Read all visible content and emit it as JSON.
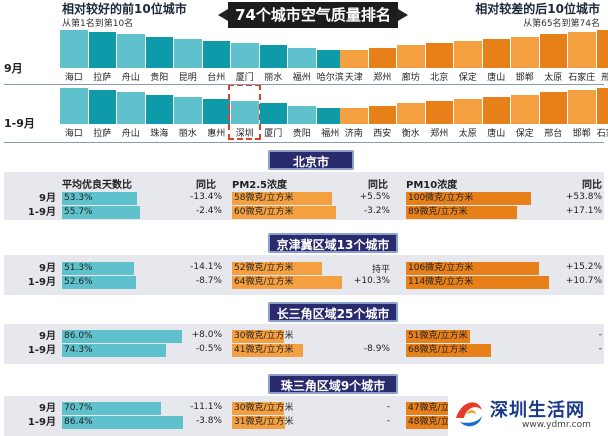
{
  "header": {
    "title": "74个城市空气质量排名",
    "left_title": "相对较好的前10位城市",
    "left_sub": "从第1名到第10名",
    "right_title": "相对较差的后10位城市",
    "right_sub": "从第65名到第74名"
  },
  "colors": {
    "teal": "#5fc1cc",
    "teal_dark": "#0e9aa8",
    "orange": "#f5a040",
    "orange_dark": "#e8801a",
    "navy": "#2a2a6e",
    "panel": "#e6e8ee"
  },
  "chart_data": [
    {
      "type": "bar",
      "row_label": "9月",
      "best": [
        "海口",
        "拉萨",
        "舟山",
        "贵阳",
        "昆明",
        "台州",
        "厦门",
        "丽水",
        "福州",
        "哈尔滨"
      ],
      "worst": [
        "天津",
        "郑州",
        "廊坊",
        "北京",
        "保定",
        "唐山",
        "邯郸",
        "太原",
        "石家庄",
        "邢台"
      ]
    },
    {
      "type": "bar",
      "row_label": "1-9月",
      "best": [
        "海口",
        "拉萨",
        "舟山",
        "珠海",
        "丽水",
        "惠州",
        "深圳",
        "厦门",
        "贵阳",
        "福州"
      ],
      "worst": [
        "济南",
        "西安",
        "衡水",
        "郑州",
        "太原",
        "唐山",
        "保定",
        "邢台",
        "邯郸",
        "石家庄"
      ],
      "highlighted": "深圳"
    },
    {
      "type": "table",
      "columns": [
        "平均优良天数比",
        "同比",
        "PM2.5浓度",
        "同比",
        "PM10浓度",
        "同比"
      ],
      "regions": [
        {
          "name": "北京市",
          "rows": [
            {
              "period": "9月",
              "good": "53.3%",
              "good_v": 53.3,
              "good_yoy": "-13.4%",
              "pm25": "58微克/立方米",
              "pm25_v": 58,
              "pm25_yoy": "+5.5%",
              "pm10": "100微克/立方米",
              "pm10_v": 100,
              "pm10_yoy": "+53.8%"
            },
            {
              "period": "1-9月",
              "good": "55.7%",
              "good_v": 55.7,
              "good_yoy": "-2.4%",
              "pm25": "60微克/立方米",
              "pm25_v": 60,
              "pm25_yoy": "-3.2%",
              "pm10": "89微克/立方米",
              "pm10_v": 89,
              "pm10_yoy": "+17.1%"
            }
          ]
        },
        {
          "name": "京津冀区域13个城市",
          "rows": [
            {
              "period": "9月",
              "good": "51.3%",
              "good_v": 51.3,
              "good_yoy": "-14.1%",
              "pm25": "52微克/立方米",
              "pm25_v": 52,
              "pm25_yoy": "持平",
              "pm10": "106微克/立方米",
              "pm10_v": 106,
              "pm10_yoy": "+15.2%"
            },
            {
              "period": "1-9月",
              "good": "52.6%",
              "good_v": 52.6,
              "good_yoy": "-8.7%",
              "pm25": "64微克/立方米",
              "pm25_v": 64,
              "pm25_yoy": "+10.3%",
              "pm10": "114微克/立方米",
              "pm10_v": 114,
              "pm10_yoy": "+10.7%"
            }
          ]
        },
        {
          "name": "长三角区域25个城市",
          "rows": [
            {
              "period": "9月",
              "good": "86.0%",
              "good_v": 86.0,
              "good_yoy": "+8.0%",
              "pm25": "30微克/立方米",
              "pm25_v": 30,
              "pm25_yoy": "",
              "pm10": "51微克/立方米",
              "pm10_v": 51,
              "pm10_yoy": "-"
            },
            {
              "period": "1-9月",
              "good": "74.3%",
              "good_v": 74.3,
              "good_yoy": "-0.5%",
              "pm25": "41微克/立方米",
              "pm25_v": 41,
              "pm25_yoy": "-8.9%",
              "pm10": "68微克/立方米",
              "pm10_v": 68,
              "pm10_yoy": "-"
            }
          ]
        },
        {
          "name": "珠三角区域9个城市",
          "rows": [
            {
              "period": "9月",
              "good": "70.7%",
              "good_v": 70.7,
              "good_yoy": "-11.1%",
              "pm25": "30微克/立方米",
              "pm25_v": 30,
              "pm25_yoy": "-",
              "pm10": "47微克/立方米",
              "pm10_v": 47,
              "pm10_yoy": ""
            },
            {
              "period": "1-9月",
              "good": "86.4%",
              "good_v": 86.4,
              "good_yoy": "-3.8%",
              "pm25": "31微克/立方米",
              "pm25_v": 31,
              "pm25_yoy": "-",
              "pm10": "48微克/立方米",
              "pm10_v": 48,
              "pm10_yoy": ""
            }
          ]
        }
      ]
    }
  ],
  "watermark": {
    "name": "深圳生活网",
    "url": "www.ydmr.com"
  }
}
